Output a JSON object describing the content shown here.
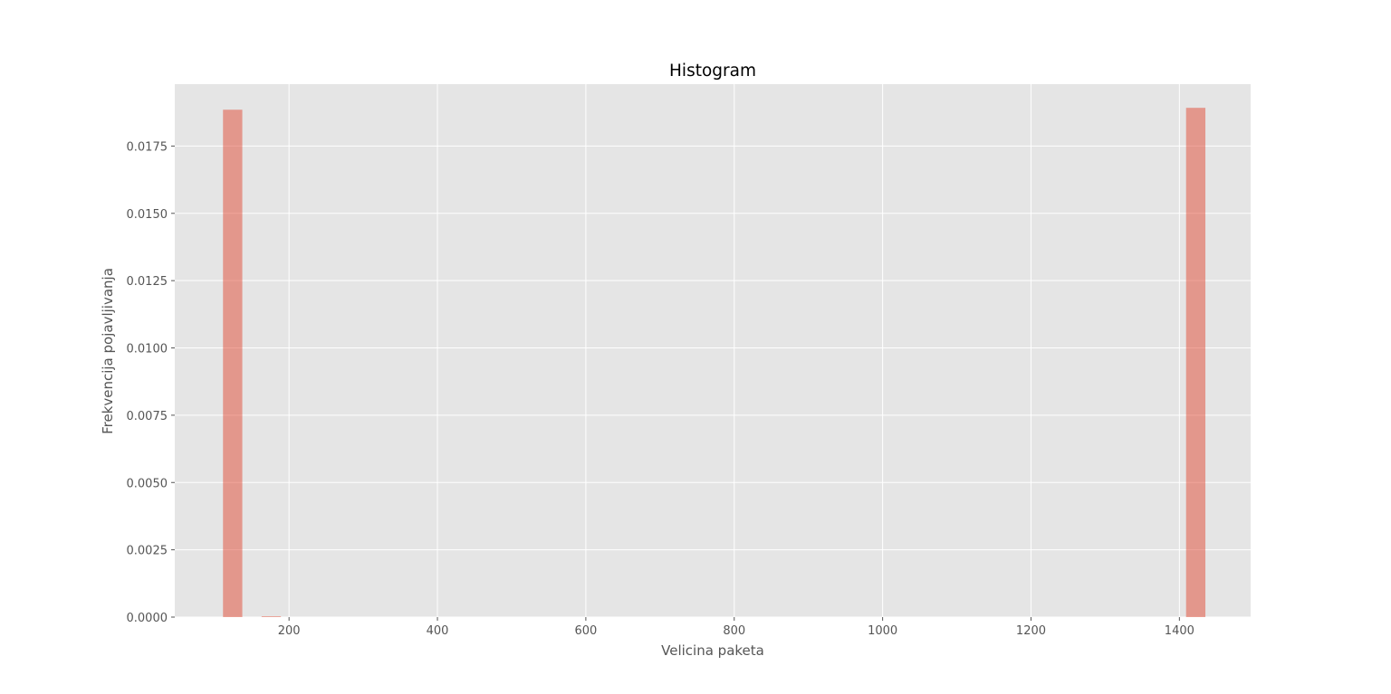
{
  "chart_data": {
    "type": "bar",
    "title": "Histogram",
    "xlabel": "Velicina paketa",
    "ylabel": "Frekvencija pojavljivanja",
    "xlim": [
      46,
      1496
    ],
    "ylim": [
      0,
      0.0198
    ],
    "xticks": [
      200,
      400,
      600,
      800,
      1000,
      1200,
      1400
    ],
    "xtick_labels": [
      "200",
      "400",
      "600",
      "800",
      "1000",
      "1200",
      "1400"
    ],
    "yticks": [
      0,
      0.0025,
      0.005,
      0.0075,
      0.01,
      0.0125,
      0.015,
      0.0175
    ],
    "ytick_labels": [
      "0.0000",
      "0.0025",
      "0.0050",
      "0.0075",
      "0.0100",
      "0.0125",
      "0.0150",
      "0.0175"
    ],
    "grid": true,
    "bar_color": "#E24A33",
    "bar_opacity": 0.5,
    "plot_background": "#E5E5E5",
    "bins": [
      {
        "x0": 111,
        "x1": 137,
        "value": 0.01885
      },
      {
        "x0": 163,
        "x1": 189,
        "value": 3e-05
      },
      {
        "x0": 1409,
        "x1": 1435,
        "value": 0.01892
      }
    ]
  }
}
